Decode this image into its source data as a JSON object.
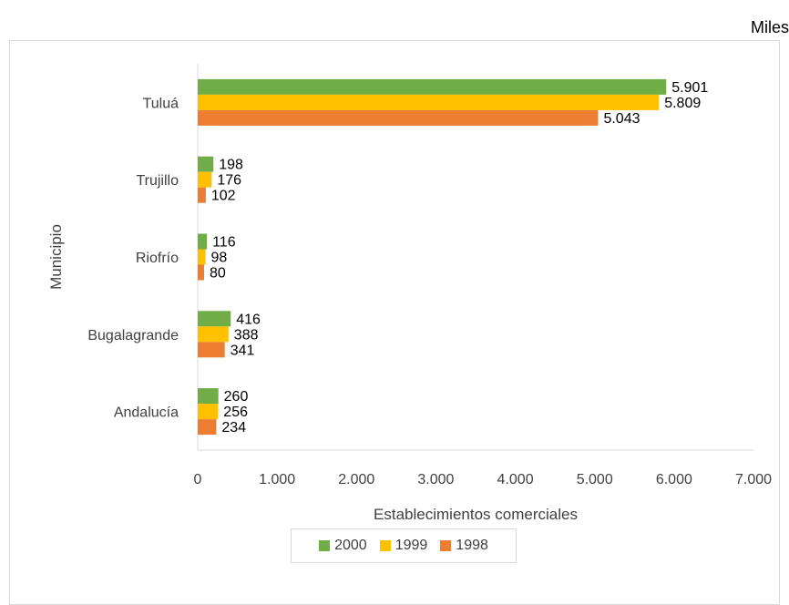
{
  "units_label": "Miles",
  "chart_data": {
    "type": "bar",
    "orientation": "horizontal",
    "title": "",
    "xlabel": "Establecimientos comerciales",
    "ylabel": "Municipio",
    "xlim": [
      0,
      7000
    ],
    "xticks": [
      0,
      1000,
      2000,
      3000,
      4000,
      5000,
      6000,
      7000
    ],
    "xtick_labels": [
      "0",
      "1.000",
      "2.000",
      "3.000",
      "4.000",
      "5.000",
      "6.000",
      "7.000"
    ],
    "categories": [
      "Tuluá",
      "Trujillo",
      "Riofrío",
      "Bugalagrande",
      "Andalucía"
    ],
    "series": [
      {
        "name": "2000",
        "color": "#70ad47",
        "values": [
          5901,
          198,
          116,
          416,
          260
        ],
        "labels": [
          "5.901",
          "198",
          "116",
          "416",
          "260"
        ]
      },
      {
        "name": "1999",
        "color": "#ffc000",
        "values": [
          5809,
          176,
          98,
          388,
          256
        ],
        "labels": [
          "5.809",
          "176",
          "98",
          "388",
          "256"
        ]
      },
      {
        "name": "1998",
        "color": "#ed7d31",
        "values": [
          5043,
          102,
          80,
          341,
          234
        ],
        "labels": [
          "5.043",
          "102",
          "80",
          "341",
          "234"
        ]
      }
    ],
    "grid": false,
    "legend_position": "bottom"
  }
}
